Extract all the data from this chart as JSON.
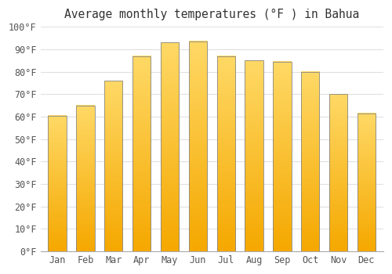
{
  "title": "Average monthly temperatures (°F ) in Bahua",
  "months": [
    "Jan",
    "Feb",
    "Mar",
    "Apr",
    "May",
    "Jun",
    "Jul",
    "Aug",
    "Sep",
    "Oct",
    "Nov",
    "Dec"
  ],
  "values": [
    60.5,
    65.0,
    76.0,
    87.0,
    93.0,
    93.5,
    87.0,
    85.0,
    84.5,
    80.0,
    70.0,
    61.5
  ],
  "bar_color_bottom": "#F5A800",
  "bar_color_top": "#FFD966",
  "bar_edge_color": "#888888",
  "ylim": [
    0,
    100
  ],
  "background_color": "#FFFFFF",
  "grid_color": "#E0E0E0",
  "title_fontsize": 10.5,
  "tick_fontsize": 8.5,
  "tick_color": "#555555",
  "bar_width": 0.65
}
